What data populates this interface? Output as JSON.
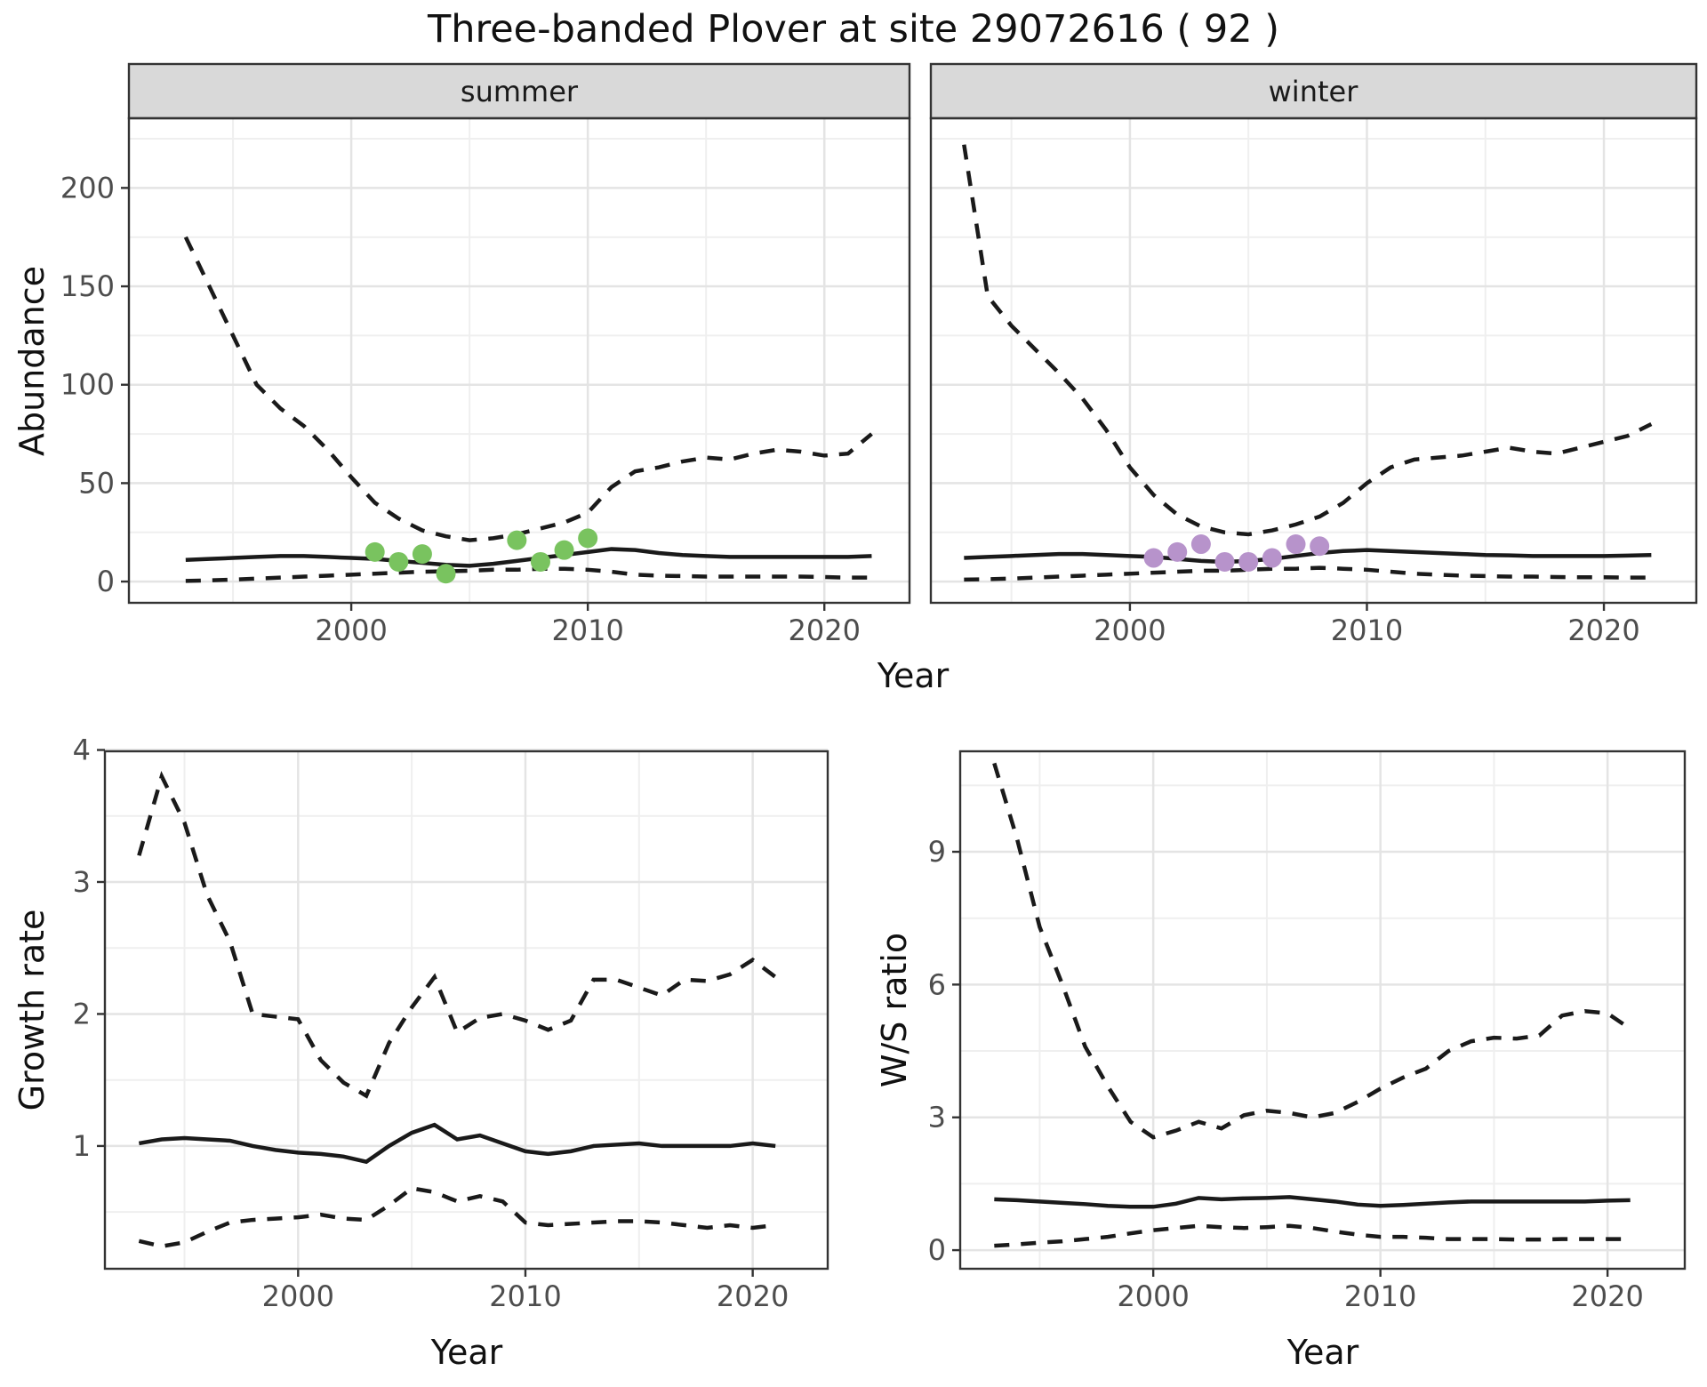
{
  "title": "Three-banded Plover at site 29072616 ( 92 )",
  "style": {
    "line_color": "#1a1a1a",
    "grid_major": "#e4e4e4",
    "grid_minor": "#efefef",
    "panel_border": "#333333",
    "strip_bg": "#d9d9d9",
    "tick_text": "#4d4d4d",
    "summer_point_color": "#79c35f",
    "winter_point_color": "#b793cb"
  },
  "chart_data": [
    {
      "id": "abundance-summer",
      "type": "line",
      "facet": "summer",
      "xlabel": "Year",
      "ylabel": "Abundance",
      "xticks": [
        2000,
        2010,
        2020
      ],
      "yticks": [
        0,
        50,
        100,
        150,
        200
      ],
      "xlim": [
        1990.6,
        2023.6
      ],
      "ylim": [
        -10.8,
        235.4
      ],
      "x": [
        1993,
        1994,
        1995,
        1996,
        1997,
        1998,
        1999,
        2000,
        2001,
        2002,
        2003,
        2004,
        2005,
        2006,
        2007,
        2008,
        2009,
        2010,
        2011,
        2012,
        2013,
        2014,
        2015,
        2016,
        2017,
        2018,
        2019,
        2020,
        2021,
        2022
      ],
      "series": [
        {
          "name": "upper-95ci",
          "style": "dashed",
          "values": [
            175,
            150,
            125,
            100,
            88,
            79,
            67,
            53,
            40,
            32,
            26,
            23,
            21,
            22,
            24,
            27,
            30,
            35,
            48,
            56,
            58,
            61,
            63,
            62,
            65,
            67,
            66,
            64,
            65,
            75
          ]
        },
        {
          "name": "median",
          "style": "solid",
          "values": [
            11,
            11.5,
            12,
            12.5,
            13,
            13,
            12.5,
            12,
            11.5,
            10.5,
            9.5,
            8.5,
            8,
            9,
            10.5,
            12,
            13.5,
            15,
            16.5,
            16,
            14.5,
            13.5,
            13,
            12.5,
            12.5,
            12.5,
            12.5,
            12.5,
            12.5,
            13
          ]
        },
        {
          "name": "lower-95ci",
          "style": "dashed",
          "values": [
            0.3,
            0.6,
            1,
            1.5,
            2,
            2.5,
            3,
            3.5,
            4,
            4.5,
            5,
            5.2,
            5.5,
            6,
            6,
            6.5,
            6.5,
            6,
            5,
            3.5,
            3,
            2.8,
            2.5,
            2.5,
            2.5,
            2.5,
            2.5,
            2.3,
            2,
            2
          ]
        }
      ],
      "points": {
        "name": "observed-summer-counts",
        "color": "#79c35f",
        "x": [
          2001,
          2002,
          2003,
          2004,
          2007,
          2008,
          2009,
          2010
        ],
        "y": [
          15,
          10,
          14,
          4,
          21,
          10,
          16,
          22
        ]
      }
    },
    {
      "id": "abundance-winter",
      "type": "line",
      "facet": "winter",
      "xlabel": "Year",
      "ylabel": "Abundance",
      "xticks": [
        2000,
        2010,
        2020
      ],
      "yticks": [
        0,
        50,
        100,
        150,
        200
      ],
      "xlim": [
        1991.6,
        2023.9
      ],
      "ylim": [
        -10.8,
        235.4
      ],
      "x": [
        1993,
        1994,
        1995,
        1996,
        1997,
        1998,
        1999,
        2000,
        2001,
        2002,
        2003,
        2004,
        2005,
        2006,
        2007,
        2008,
        2009,
        2010,
        2011,
        2012,
        2013,
        2014,
        2015,
        2016,
        2017,
        2018,
        2019,
        2020,
        2021,
        2022
      ],
      "series": [
        {
          "name": "upper-95ci",
          "style": "dashed",
          "values": [
            222,
            145,
            130,
            118,
            106,
            93,
            77,
            58,
            44,
            34,
            28,
            25,
            24,
            26,
            29,
            33,
            40,
            50,
            58,
            62,
            63,
            64,
            66,
            68,
            66,
            65,
            68,
            71,
            74,
            80
          ]
        },
        {
          "name": "median",
          "style": "solid",
          "values": [
            12,
            12.5,
            13,
            13.5,
            14,
            14,
            13.5,
            13,
            12.5,
            11.5,
            10.5,
            10,
            10.5,
            11.5,
            13,
            14.5,
            15.5,
            16,
            15.5,
            15,
            14.5,
            14,
            13.5,
            13.3,
            13,
            13,
            13,
            13,
            13.2,
            13.5
          ]
        },
        {
          "name": "lower-95ci",
          "style": "dashed",
          "values": [
            1,
            1.2,
            1.5,
            2,
            2.5,
            3,
            3.5,
            4,
            4.5,
            5,
            5.5,
            5.5,
            6,
            6.5,
            6.5,
            7,
            6.5,
            6,
            5,
            4,
            3.5,
            3,
            2.8,
            2.5,
            2.5,
            2.3,
            2.2,
            2.2,
            2,
            2
          ]
        }
      ],
      "points": {
        "name": "observed-winter-counts",
        "color": "#b793cb",
        "x": [
          2001,
          2002,
          2003,
          2004,
          2005,
          2006,
          2007,
          2008
        ],
        "y": [
          12,
          15,
          19,
          10,
          10,
          12,
          19,
          18
        ]
      }
    },
    {
      "id": "growth-rate",
      "type": "line",
      "facet": null,
      "xlabel": "Year",
      "ylabel": "Growth rate",
      "xticks": [
        2000,
        2010,
        2020
      ],
      "yticks": [
        1,
        2,
        3,
        4
      ],
      "xlim": [
        1991.5,
        2023.3
      ],
      "ylim": [
        0.07,
        3.99
      ],
      "x": [
        1993,
        1994,
        1995,
        1996,
        1997,
        1998,
        1999,
        2000,
        2001,
        2002,
        2003,
        2004,
        2005,
        2006,
        2007,
        2008,
        2009,
        2010,
        2011,
        2012,
        2013,
        2014,
        2015,
        2016,
        2017,
        2018,
        2019,
        2020,
        2021
      ],
      "series": [
        {
          "name": "upper-95ci",
          "style": "dashed",
          "values": [
            3.2,
            3.8,
            3.45,
            2.9,
            2.55,
            2.0,
            1.98,
            1.96,
            1.65,
            1.48,
            1.38,
            1.78,
            2.05,
            2.28,
            1.86,
            1.97,
            2.0,
            1.95,
            1.88,
            1.95,
            2.26,
            2.26,
            2.2,
            2.14,
            2.26,
            2.25,
            2.3,
            2.41,
            2.28
          ]
        },
        {
          "name": "median",
          "style": "solid",
          "values": [
            1.02,
            1.05,
            1.06,
            1.05,
            1.04,
            1.0,
            0.97,
            0.95,
            0.94,
            0.92,
            0.88,
            1.0,
            1.1,
            1.16,
            1.05,
            1.08,
            1.02,
            0.96,
            0.94,
            0.96,
            1.0,
            1.01,
            1.02,
            1.0,
            1.0,
            1.0,
            1.0,
            1.02,
            1.0
          ]
        },
        {
          "name": "lower-95ci",
          "style": "dashed",
          "values": [
            0.28,
            0.24,
            0.27,
            0.35,
            0.42,
            0.44,
            0.45,
            0.46,
            0.48,
            0.45,
            0.44,
            0.55,
            0.68,
            0.65,
            0.58,
            0.62,
            0.58,
            0.42,
            0.4,
            0.41,
            0.42,
            0.43,
            0.43,
            0.42,
            0.4,
            0.38,
            0.4,
            0.38,
            0.4
          ]
        }
      ],
      "points": null
    },
    {
      "id": "ws-ratio",
      "type": "line",
      "facet": null,
      "xlabel": "Year",
      "ylabel": "W/S ratio",
      "xticks": [
        2000,
        2010,
        2020
      ],
      "yticks": [
        0,
        3,
        6,
        9
      ],
      "xlim": [
        1991.5,
        2023.4
      ],
      "ylim": [
        -0.42,
        11.27
      ],
      "x": [
        1993,
        1994,
        1995,
        1996,
        1997,
        1998,
        1999,
        2000,
        2001,
        2002,
        2003,
        2004,
        2005,
        2006,
        2007,
        2008,
        2009,
        2010,
        2011,
        2012,
        2013,
        2014,
        2015,
        2016,
        2017,
        2018,
        2019,
        2020,
        2021
      ],
      "series": [
        {
          "name": "upper-95ci",
          "style": "dashed",
          "values": [
            11.0,
            9.3,
            7.3,
            6.0,
            4.6,
            3.7,
            2.9,
            2.55,
            2.7,
            2.9,
            2.75,
            3.05,
            3.15,
            3.1,
            3.0,
            3.1,
            3.35,
            3.65,
            3.9,
            4.1,
            4.5,
            4.72,
            4.8,
            4.78,
            4.85,
            5.3,
            5.4,
            5.35,
            5.0
          ]
        },
        {
          "name": "median",
          "style": "solid",
          "values": [
            1.15,
            1.13,
            1.1,
            1.07,
            1.04,
            1.0,
            0.98,
            0.98,
            1.05,
            1.18,
            1.15,
            1.17,
            1.18,
            1.2,
            1.15,
            1.1,
            1.03,
            1.0,
            1.02,
            1.05,
            1.08,
            1.1,
            1.1,
            1.1,
            1.1,
            1.1,
            1.1,
            1.12,
            1.13
          ]
        },
        {
          "name": "lower-95ci",
          "style": "dashed",
          "values": [
            0.1,
            0.13,
            0.17,
            0.2,
            0.25,
            0.3,
            0.38,
            0.45,
            0.5,
            0.55,
            0.52,
            0.5,
            0.52,
            0.55,
            0.5,
            0.42,
            0.35,
            0.3,
            0.3,
            0.28,
            0.25,
            0.25,
            0.25,
            0.24,
            0.24,
            0.25,
            0.25,
            0.25,
            0.25
          ]
        }
      ],
      "points": null
    }
  ]
}
